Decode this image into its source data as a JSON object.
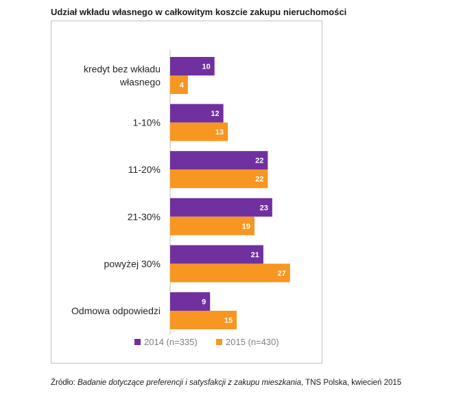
{
  "chart_data": {
    "type": "bar",
    "orientation": "horizontal",
    "title": "Udział wkładu własnego w całkowitym koszcie zakupu nieruchomości",
    "categories": [
      [
        "kredyt bez wkładu",
        "własnego"
      ],
      [
        "1-10%"
      ],
      [
        "11-20%"
      ],
      [
        "21-30%"
      ],
      [
        "powyżej 30%"
      ],
      [
        "Odmowa odpowiedzi"
      ]
    ],
    "series": [
      {
        "name": "2014 (n=335)",
        "color": "#7030a0",
        "values": [
          10,
          12,
          22,
          23,
          21,
          9
        ]
      },
      {
        "name": "2015 (n=430)",
        "color": "#f79621",
        "values": [
          4,
          13,
          22,
          19,
          27,
          15
        ]
      }
    ],
    "xlim": [
      0,
      27.5
    ],
    "grid": false,
    "legend": "bottom"
  },
  "source": {
    "prefix": "Źródło: ",
    "italic": "Badanie dotyczące preferencji i satysfakcji z zakupu mieszkania",
    "suffix": ", TNS Polska, kwiecień 2015"
  }
}
